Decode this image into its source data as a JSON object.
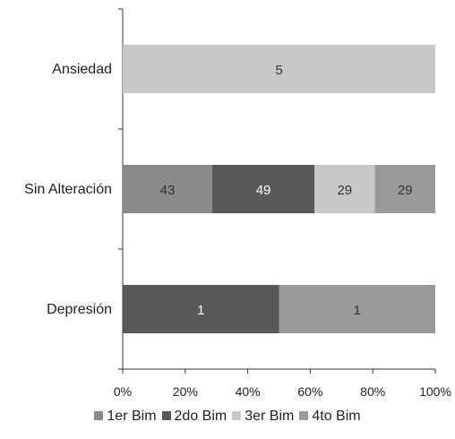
{
  "chart_data": {
    "type": "bar",
    "orientation": "horizontal",
    "stacked": "percent",
    "categories": [
      "Ansiedad",
      "Sin Alteración",
      "Depresión"
    ],
    "series": [
      {
        "name": "1er Bim",
        "values": [
          0,
          43,
          0
        ],
        "color": "#8a8a8a"
      },
      {
        "name": "2do Bim",
        "values": [
          0,
          49,
          1
        ],
        "color": "#595959"
      },
      {
        "name": "3er Bim",
        "values": [
          5,
          29,
          0
        ],
        "color": "#c8c8c8"
      },
      {
        "name": "4to Bim",
        "values": [
          0,
          29,
          1
        ],
        "color": "#9a9a9a"
      }
    ],
    "x_ticks": [
      "0%",
      "20%",
      "40%",
      "60%",
      "80%",
      "100%"
    ],
    "xlim": [
      0,
      100
    ],
    "legend_position": "bottom",
    "grid": false
  }
}
